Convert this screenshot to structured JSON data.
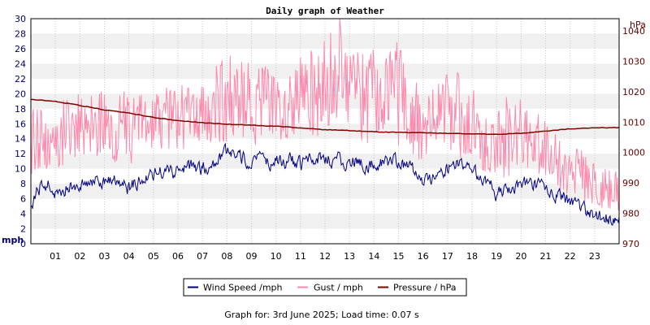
{
  "chart_data": {
    "type": "line",
    "title": "Daily graph of Weather",
    "footer": "Graph for: 3rd June 2025; Load time: 0.07 s",
    "left_axis": {
      "label": "mph",
      "range": [
        0,
        30
      ],
      "ticks": [
        "0",
        "2",
        "4",
        "6",
        "8",
        "10",
        "12",
        "14",
        "16",
        "18",
        "20",
        "22",
        "24",
        "26",
        "28",
        "30"
      ],
      "color": "#000066"
    },
    "right_axis": {
      "label": "hPa",
      "range": [
        970,
        1044
      ],
      "ticks": [
        "970",
        "980",
        "990",
        "1000",
        "1010",
        "1020",
        "1030",
        "1040"
      ],
      "color": "#660000"
    },
    "x_axis": {
      "range": [
        0,
        24
      ],
      "ticks": [
        "01",
        "02",
        "03",
        "04",
        "05",
        "06",
        "07",
        "08",
        "09",
        "10",
        "11",
        "12",
        "13",
        "14",
        "15",
        "16",
        "17",
        "18",
        "19",
        "20",
        "21",
        "22",
        "23"
      ]
    },
    "grid": true,
    "legend_position": "bottom-center",
    "series": [
      {
        "name": "Wind Speed /mph",
        "axis": "left",
        "color": "#000080",
        "x": [
          0,
          0.5,
          1,
          1.5,
          2,
          2.5,
          3,
          3.5,
          4,
          4.5,
          5,
          5.5,
          6,
          6.5,
          7,
          7.5,
          8,
          8.5,
          9,
          9.5,
          10,
          10.5,
          11,
          11.5,
          12,
          12.5,
          13,
          13.5,
          14,
          14.5,
          15,
          15.5,
          16,
          16.5,
          17,
          17.5,
          18,
          18.5,
          19,
          19.5,
          20,
          20.5,
          21,
          21.5,
          22,
          22.5,
          23,
          23.5,
          24
        ],
        "values": [
          5,
          8.5,
          7,
          7.5,
          8,
          8.5,
          8.5,
          8,
          7.5,
          8.5,
          9.5,
          9.5,
          9.5,
          10,
          10,
          10.5,
          12,
          11.5,
          11,
          11,
          11,
          11,
          10.5,
          11,
          11.5,
          11,
          11,
          11,
          10.5,
          11,
          11,
          10,
          8.5,
          9,
          10,
          10.5,
          9.5,
          8.5,
          6.5,
          7.5,
          8,
          8,
          7,
          6.5,
          5.5,
          4.5,
          3.5,
          3.5,
          3.5
        ]
      },
      {
        "name": "Gust / mph",
        "axis": "left",
        "color": "#ff88aa",
        "x": [
          0,
          0.5,
          1,
          1.5,
          2,
          2.5,
          3,
          3.5,
          4,
          4.5,
          5,
          5.5,
          6,
          6.5,
          7,
          7.5,
          8,
          8.5,
          9,
          9.5,
          10,
          10.5,
          11,
          11.5,
          12,
          12.5,
          13,
          13.5,
          14,
          14.5,
          15,
          15.5,
          16,
          16.5,
          17,
          17.5,
          18,
          18.5,
          19,
          19.5,
          20,
          20.5,
          21,
          21.5,
          22,
          22.5,
          23,
          23.5,
          24
        ],
        "low": [
          7.5,
          10,
          9,
          10.5,
          11.5,
          11,
          11,
          10.5,
          10.5,
          11,
          12,
          12.5,
          12,
          12.5,
          12.5,
          13.5,
          13.5,
          13.5,
          13,
          13.5,
          13.5,
          13,
          13,
          14,
          14.5,
          14,
          14,
          13,
          13.5,
          13.5,
          12.5,
          11.5,
          11,
          12.5,
          12,
          11.5,
          10.5,
          8.5,
          7.5,
          9,
          9.5,
          9.5,
          8,
          7.5,
          6,
          5.5,
          5,
          4.5,
          4
        ],
        "high": [
          18,
          18.5,
          19,
          19.5,
          20,
          20,
          20.5,
          20.5,
          20.5,
          20.5,
          21,
          21,
          21.5,
          22,
          22.5,
          26,
          26.5,
          25,
          24,
          24,
          23.5,
          23.5,
          25,
          26,
          27.5,
          30,
          26,
          25.5,
          26,
          25,
          27.5,
          24,
          21.5,
          21.5,
          23,
          23,
          21.5,
          19,
          19,
          20,
          19.5,
          19,
          17,
          15,
          13,
          12.5,
          11,
          10.5,
          10
        ],
        "peak": 30
      },
      {
        "name": "Pressure / hPa",
        "axis": "right",
        "color": "#800000",
        "x": [
          0,
          1,
          2,
          3,
          4,
          5,
          6,
          7,
          8,
          9,
          10,
          11,
          12,
          13,
          14,
          15,
          16,
          17,
          18,
          19,
          20,
          21,
          22,
          23,
          24
        ],
        "values": [
          1017.5,
          1016.8,
          1015.5,
          1014,
          1013,
          1011.5,
          1010.5,
          1009.8,
          1009.3,
          1009,
          1008.6,
          1008.1,
          1007.5,
          1007.2,
          1006.8,
          1006.6,
          1006.5,
          1006.3,
          1006.1,
          1006,
          1006.3,
          1007,
          1007.8,
          1008.1,
          1008.2
        ]
      }
    ]
  }
}
